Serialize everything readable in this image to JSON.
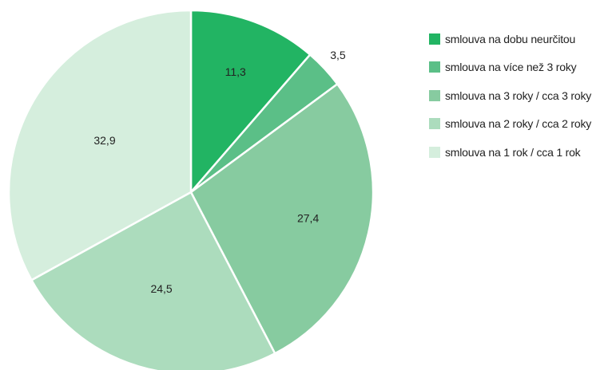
{
  "chart_data": {
    "type": "pie",
    "categories": [
      "smlouva na dobu neurčitou",
      "smlouva na více než 3 roky",
      "smlouva na 3 roky / cca 3 roky",
      "smlouva na 2 roky / cca 2 roky",
      "smlouva na 1 rok / cca 1 rok"
    ],
    "values": [
      11.3,
      3.5,
      27.4,
      24.5,
      32.9
    ],
    "value_labels": [
      "11,3",
      "3,5",
      "27,4",
      "24,5",
      "32,9"
    ],
    "colors": [
      "#22b463",
      "#5bbf87",
      "#87cba0",
      "#acdcbd",
      "#d5eedd"
    ],
    "legend_position": "right",
    "start_angle": "12 o'clock",
    "direction": "clockwise"
  }
}
